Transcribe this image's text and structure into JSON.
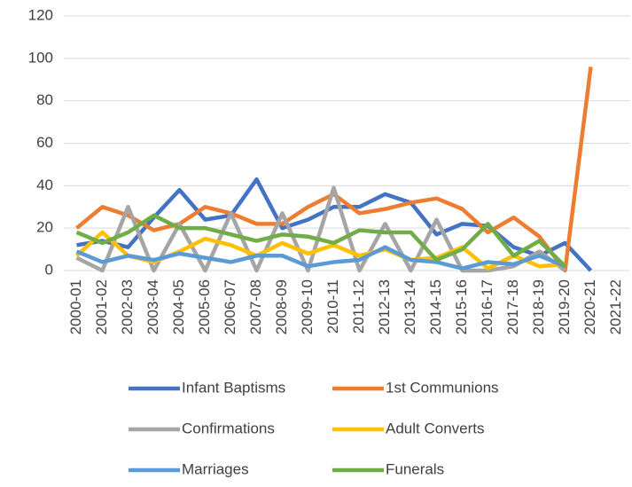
{
  "chart_data": {
    "type": "line",
    "categories": [
      "2000-01",
      "2001-02",
      "2002-03",
      "2003-04",
      "2004-05",
      "2005-06",
      "2006-07",
      "2007-08",
      "2008-09",
      "2009-10",
      "2010-11",
      "2011-12",
      "2012-13",
      "2013-14",
      "2014-15",
      "2015-16",
      "2016-17",
      "2017-18",
      "2018-19",
      "2019-20",
      "2020-21",
      "2021-22"
    ],
    "series": [
      {
        "name": "Infant Baptisms",
        "color": "#4472c4",
        "values": [
          12,
          14,
          11,
          25,
          38,
          24,
          26,
          43,
          20,
          24,
          30,
          30,
          36,
          32,
          17,
          22,
          21,
          11,
          7,
          13,
          0,
          null
        ]
      },
      {
        "name": "1st Communions",
        "color": "#ed7d31",
        "values": [
          20,
          30,
          26,
          19,
          22,
          30,
          27,
          22,
          22,
          30,
          36,
          27,
          29,
          32,
          34,
          29,
          18,
          25,
          16,
          0,
          96,
          null
        ]
      },
      {
        "name": "Confirmations",
        "color": "#a5a5a5",
        "values": [
          6,
          0,
          30,
          0,
          22,
          0,
          27,
          0,
          27,
          0,
          39,
          0,
          22,
          0,
          24,
          0,
          0,
          2,
          9,
          0,
          null,
          null
        ]
      },
      {
        "name": "Adult Converts",
        "color": "#ffc000",
        "values": [
          7,
          18,
          7,
          4,
          9,
          15,
          12,
          7,
          13,
          8,
          12,
          7,
          10,
          5,
          6,
          11,
          1,
          7,
          2,
          3,
          null,
          null
        ]
      },
      {
        "name": "Marriages",
        "color": "#5b9bd5",
        "values": [
          9,
          4,
          7,
          5,
          8,
          6,
          4,
          7,
          7,
          2,
          4,
          5,
          11,
          5,
          4,
          1,
          4,
          3,
          7,
          2,
          null,
          null
        ]
      },
      {
        "name": "Funerals",
        "color": "#70ad47",
        "values": [
          18,
          13,
          18,
          26,
          20,
          20,
          17,
          14,
          17,
          16,
          13,
          19,
          18,
          18,
          5,
          10,
          22,
          7,
          14,
          2,
          null,
          null
        ]
      }
    ],
    "ylim": [
      0,
      120
    ],
    "yticks": [
      0,
      20,
      40,
      60,
      80,
      100,
      120
    ],
    "grid": true,
    "legend": "bottom"
  }
}
